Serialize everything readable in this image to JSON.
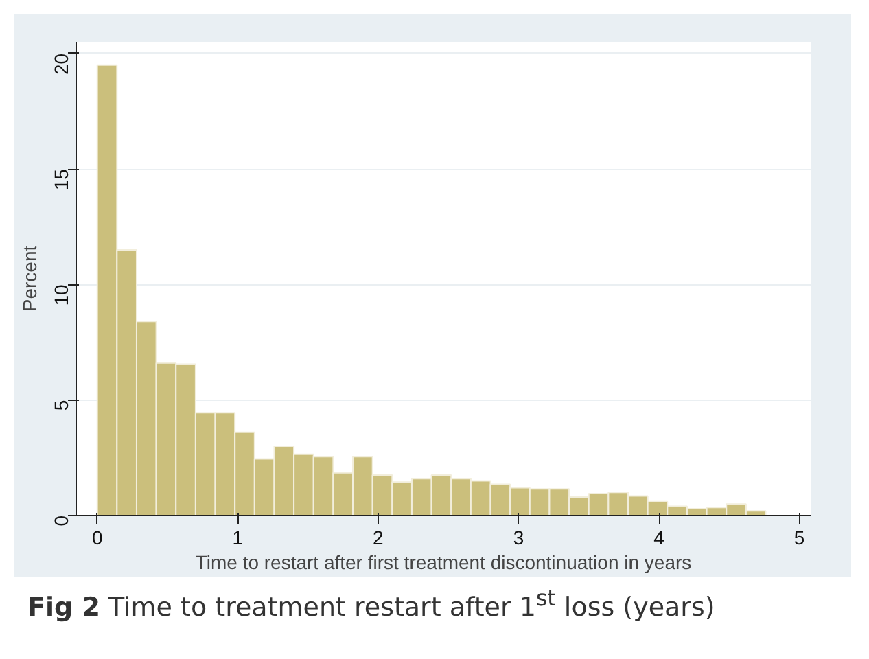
{
  "chart_data": {
    "type": "histogram",
    "xlabel": "Time to restart after first treatment discontinuation in years",
    "ylabel": "Percent",
    "bins": [
      0,
      0.14,
      0.28,
      0.42,
      0.56,
      0.7,
      0.84,
      0.98,
      1.12,
      1.26,
      1.4,
      1.54,
      1.68,
      1.82,
      1.96,
      2.1,
      2.24,
      2.38,
      2.52,
      2.66,
      2.8,
      2.94,
      3.08,
      3.22,
      3.36,
      3.5,
      3.64,
      3.78,
      3.92,
      4.06,
      4.2,
      4.34,
      4.48,
      4.62,
      4.76
    ],
    "values": [
      19.5,
      11.5,
      8.4,
      6.6,
      6.55,
      4.45,
      4.45,
      3.6,
      2.45,
      3.0,
      2.65,
      2.55,
      1.85,
      2.55,
      1.75,
      1.45,
      1.6,
      1.75,
      1.6,
      1.5,
      1.35,
      1.2,
      1.15,
      1.15,
      0.8,
      0.95,
      1.0,
      0.85,
      0.6,
      0.4,
      0.3,
      0.35,
      0.5,
      0.2
    ],
    "color": "#cbbf7c",
    "xlim": [
      -0.15,
      5.08
    ],
    "ylim": [
      0,
      20.5
    ],
    "xticks": [
      0,
      1,
      2,
      3,
      4,
      5
    ],
    "yticks": [
      0,
      5,
      10,
      15,
      20
    ],
    "grid": "y",
    "annotations": [
      "Fig 2 Time to treatment restart after 1$^{st}$ loss (years)"
    ]
  }
}
